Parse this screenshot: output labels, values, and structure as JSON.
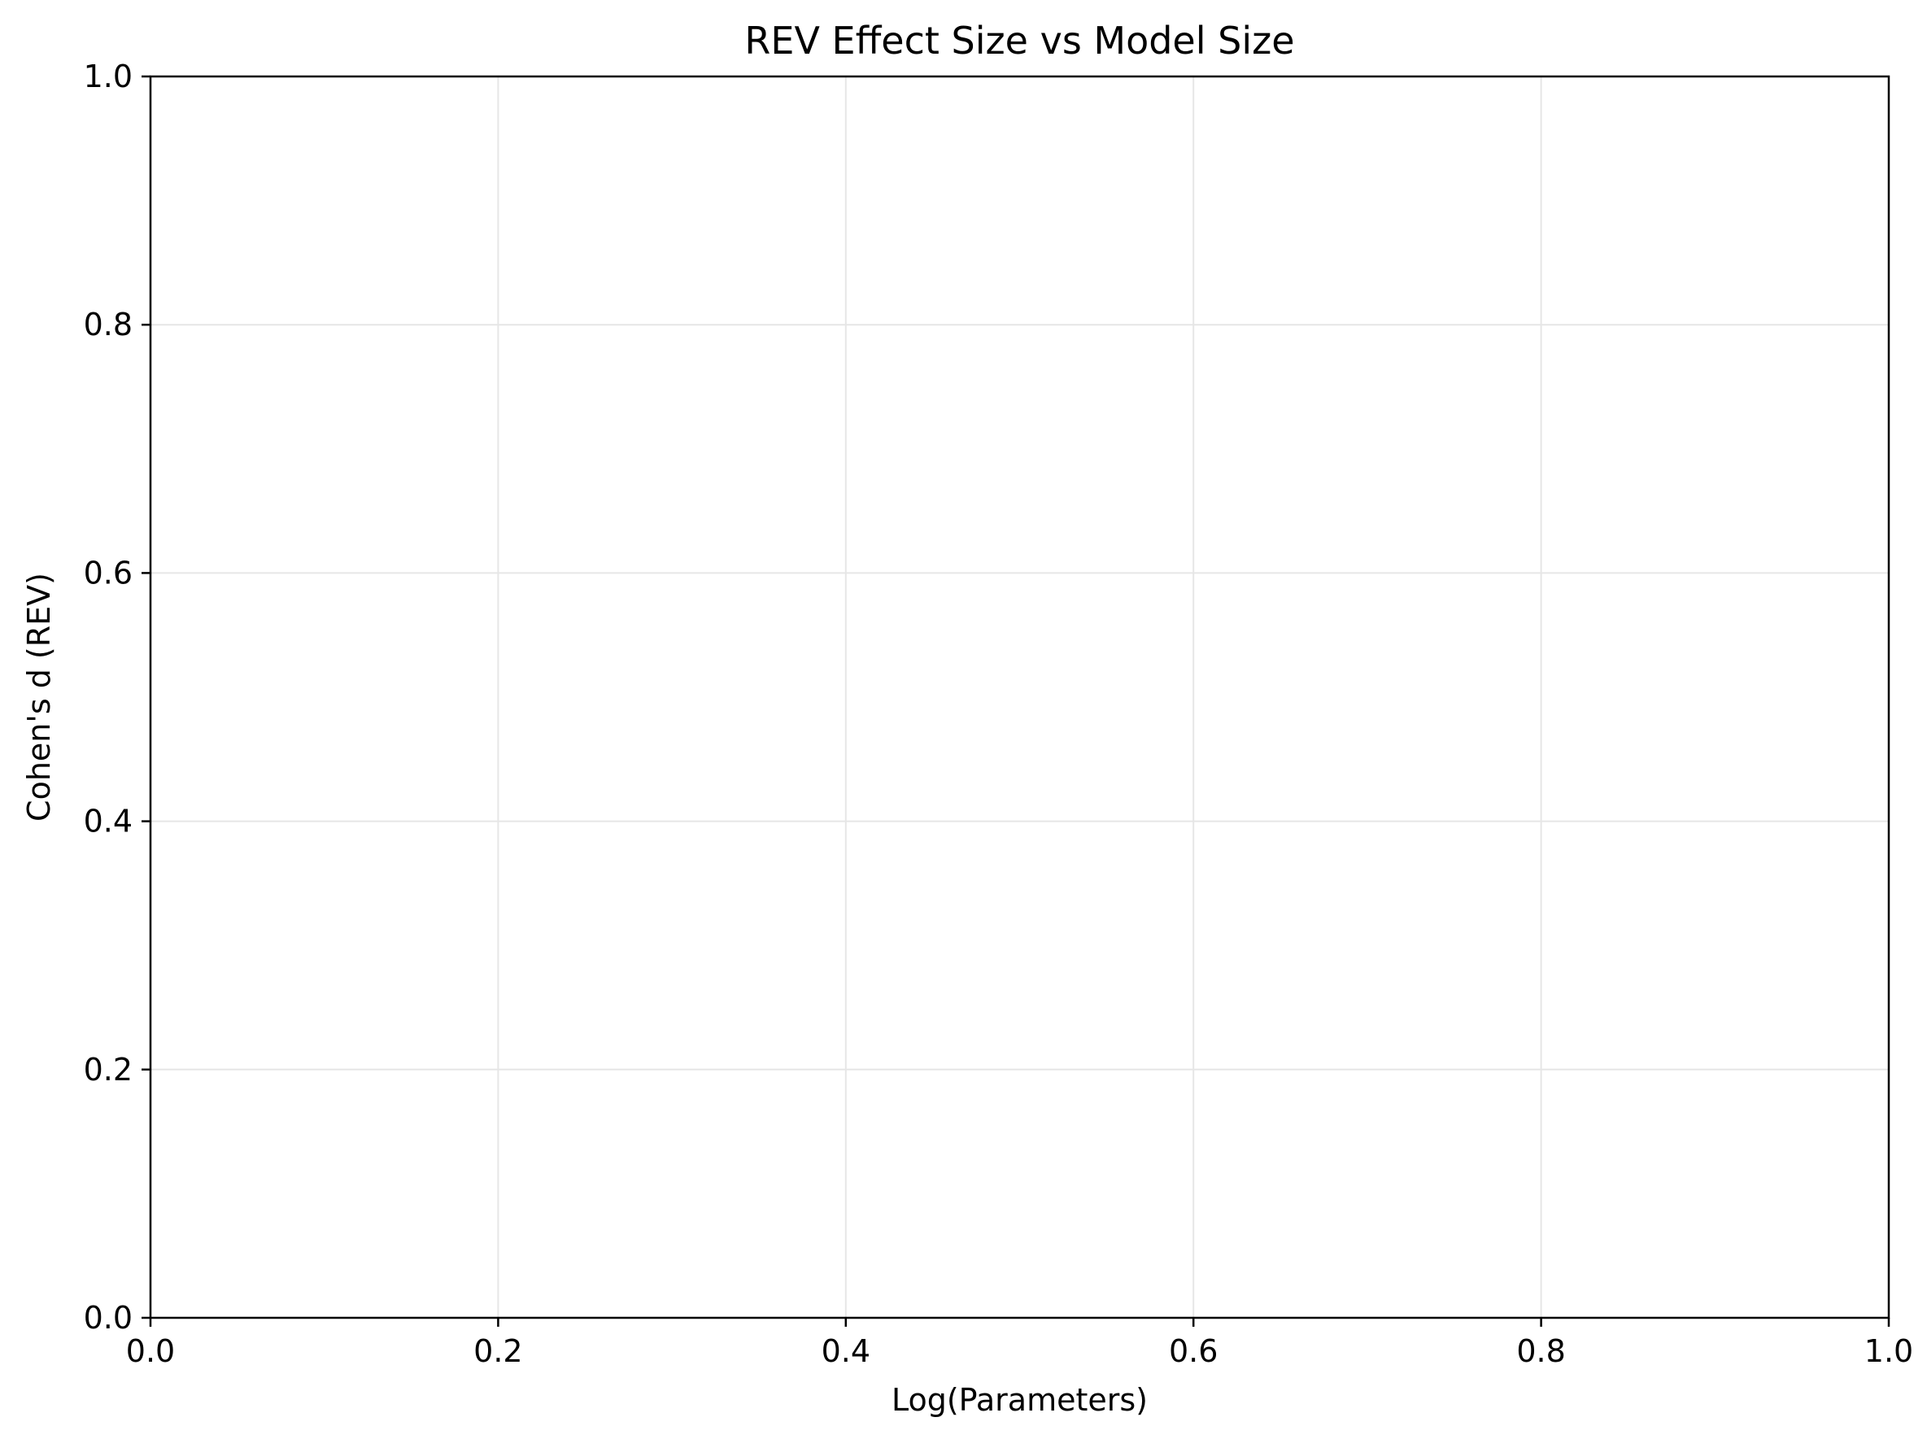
{
  "chart_data": {
    "type": "scatter",
    "title": "REV Effect Size vs Model Size",
    "xlabel": "Log(Parameters)",
    "ylabel": "Cohen's d (REV)",
    "xlim": [
      0.0,
      1.0
    ],
    "ylim": [
      0.0,
      1.0
    ],
    "x_ticks": [
      0.0,
      0.2,
      0.4,
      0.6,
      0.8,
      1.0
    ],
    "y_ticks": [
      0.0,
      0.2,
      0.4,
      0.6,
      0.8,
      1.0
    ],
    "x_tick_labels": [
      "0.0",
      "0.2",
      "0.4",
      "0.6",
      "0.8",
      "1.0"
    ],
    "y_tick_labels": [
      "0.0",
      "0.2",
      "0.4",
      "0.6",
      "0.8",
      "1.0"
    ],
    "grid": true,
    "series": []
  },
  "colors": {
    "axis": "#000000",
    "grid": "#e6e6e6",
    "background": "#ffffff"
  }
}
